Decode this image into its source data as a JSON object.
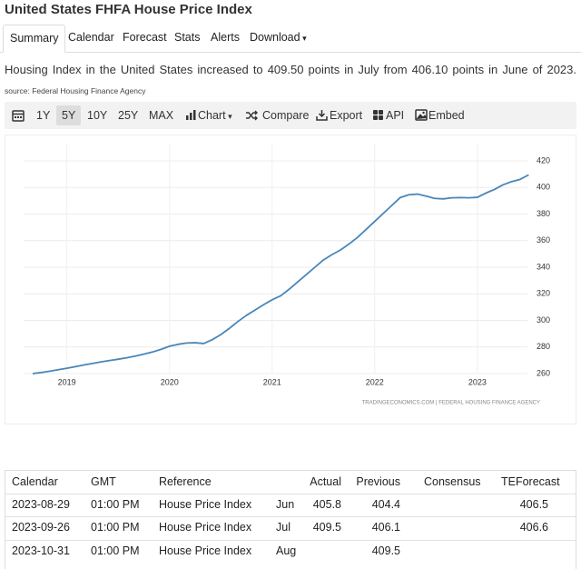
{
  "header": {
    "title": "United States FHFA House Price Index"
  },
  "tabs": [
    "Summary",
    "Calendar",
    "Forecast",
    "Stats",
    "Alerts",
    "Download"
  ],
  "summary": {
    "text": "Housing Index in the United States increased to 409.50 points in July from 406.10 points in June of 2023.",
    "source": "source: Federal Housing Finance Agency"
  },
  "toolbar": {
    "ranges": [
      "1Y",
      "5Y",
      "10Y",
      "25Y",
      "MAX"
    ],
    "active_range": 1,
    "buttons": [
      "Chart",
      "Compare",
      "Export",
      "API",
      "Embed"
    ]
  },
  "chart_data": {
    "type": "line",
    "categories": [
      null,
      null,
      null,
      null,
      "2019",
      null,
      null,
      null,
      null,
      null,
      null,
      null,
      null,
      null,
      null,
      null,
      "2020",
      null,
      null,
      null,
      null,
      null,
      null,
      null,
      null,
      null,
      null,
      null,
      "2021",
      null,
      null,
      null,
      null,
      null,
      null,
      null,
      null,
      null,
      null,
      null,
      "2022",
      null,
      null,
      null,
      null,
      null,
      null,
      null,
      null,
      null,
      null,
      null,
      "2023",
      null,
      null,
      null,
      null,
      null,
      null
    ],
    "values": [
      260,
      260.8,
      261.8,
      262.9,
      264,
      265.2,
      266.5,
      267.6,
      268.8,
      269.8,
      270.8,
      271.9,
      273.2,
      274.6,
      276.2,
      278.2,
      280.6,
      282,
      283,
      283.2,
      282.6,
      285.5,
      289.3,
      294,
      299.2,
      303.8,
      307.8,
      311.8,
      315.5,
      318.5,
      323.5,
      329,
      334.5,
      340,
      345.5,
      349.5,
      353,
      357.5,
      362.5,
      368.5,
      374.5,
      380.5,
      386.5,
      392.5,
      394.5,
      395,
      393.5,
      391.8,
      391.4,
      392.2,
      392.4,
      392.2,
      392.6,
      395.8,
      398.5,
      402,
      404.4,
      406.1,
      409.5
    ],
    "color": "#4a86b8",
    "ylim": [
      260,
      420
    ],
    "yticks": [
      260,
      280,
      300,
      320,
      340,
      360,
      380,
      400,
      420
    ],
    "grid": true,
    "y_axis_side": "right",
    "credit": "TRADINGECONOMICS.COM  |  FEDERAL HOUSING FINANCE AGENCY"
  },
  "table": {
    "columns": [
      "Calendar",
      "GMT",
      "Reference",
      null,
      "Actual",
      "Previous",
      "Consensus",
      "TEForecast"
    ],
    "rows": [
      [
        "2023-08-29",
        "01:00 PM",
        "House Price Index",
        "Jun",
        405.8,
        404.4,
        null,
        406.5
      ],
      [
        "2023-09-26",
        "01:00 PM",
        "House Price Index",
        "Jul",
        409.5,
        406.1,
        null,
        406.6
      ],
      [
        "2023-10-31",
        "01:00 PM",
        "House Price Index",
        "Aug",
        null,
        409.5,
        null,
        null
      ]
    ]
  }
}
